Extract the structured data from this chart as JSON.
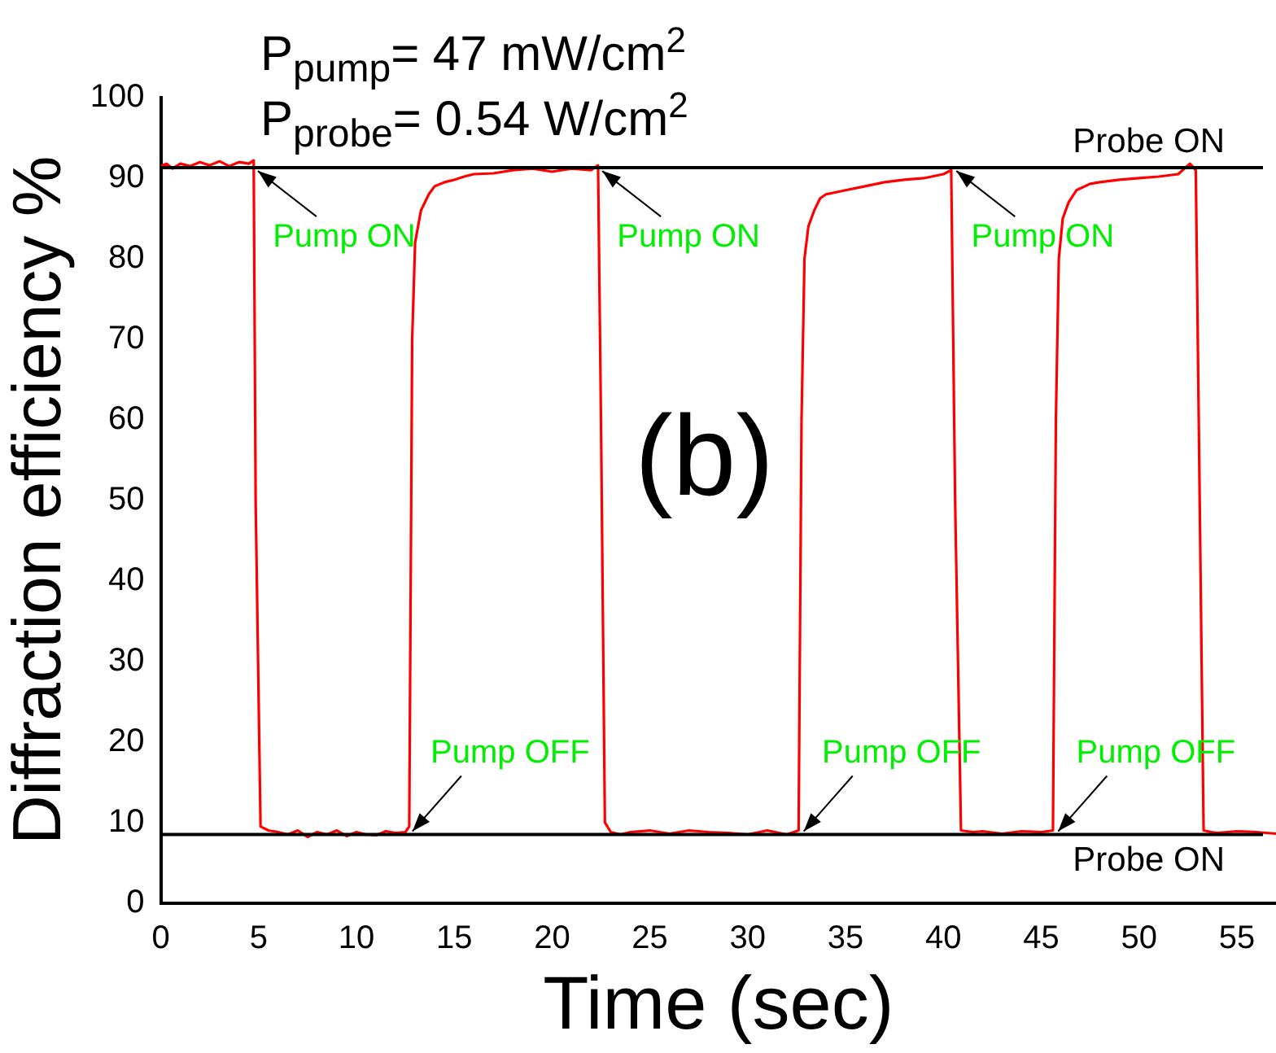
{
  "chart_data": {
    "type": "line",
    "xlabel": "Time (sec)",
    "ylabel": "Diffraction efficiency %",
    "x": [
      0,
      0.3,
      0.6,
      1,
      1.5,
      2,
      2.5,
      3,
      3.5,
      4,
      4.5,
      4.75,
      4.85,
      5.1,
      5.5,
      6,
      6.5,
      7,
      7.5,
      8,
      8.5,
      9,
      9.5,
      10,
      10.5,
      11,
      11.5,
      12,
      12.5,
      12.7,
      12.85,
      13,
      13.3,
      13.7,
      14,
      14.5,
      15,
      15.5,
      16,
      17,
      18,
      19,
      20,
      21,
      22,
      22.35,
      22.5,
      22.7,
      23,
      23.5,
      24,
      25,
      26,
      27,
      28,
      29,
      30,
      31,
      32,
      32.6,
      32.75,
      32.9,
      33.1,
      33.4,
      33.7,
      34,
      35,
      36,
      37,
      38,
      39,
      40,
      40.4,
      40.6,
      40.9,
      41.5,
      42,
      43,
      44,
      45,
      45.6,
      45.75,
      45.9,
      46.1,
      46.4,
      46.8,
      47.5,
      48,
      49,
      50,
      51,
      52,
      52.6,
      52.9,
      53.1,
      53.3,
      53.7,
      54,
      55,
      56,
      57
    ],
    "series": [
      {
        "color": "#ff0000",
        "values": [
          91.5,
          91.8,
          91.2,
          91.8,
          91.5,
          92,
          91.6,
          92.1,
          91.5,
          92,
          91.8,
          92.2,
          50,
          9.5,
          9,
          8.8,
          8.5,
          9,
          8.2,
          8.8,
          8.5,
          9,
          8.3,
          8.8,
          8.5,
          8.4,
          8.9,
          8.7,
          8.8,
          9.5,
          70,
          82,
          86,
          88,
          89,
          89.5,
          89.8,
          90.2,
          90.5,
          90.6,
          91,
          91.2,
          90.8,
          91.2,
          91,
          91.6,
          60,
          10,
          8.8,
          8.5,
          8.8,
          9,
          8.6,
          9,
          8.8,
          8.7,
          8.5,
          9,
          8.5,
          9,
          60,
          80,
          84,
          86,
          87.5,
          88,
          88.5,
          89,
          89.5,
          89.8,
          90,
          90.5,
          91,
          50,
          9,
          8.8,
          8.9,
          8.6,
          8.9,
          8.8,
          9,
          60,
          80,
          85,
          87,
          88.5,
          89.3,
          89.5,
          89.8,
          90,
          90.2,
          90.5,
          91.8,
          91,
          50,
          9,
          8.8,
          8.7,
          8.9,
          8.8,
          8.6
        ]
      }
    ],
    "xlim": [
      0,
      57
    ],
    "xticks": [
      0,
      5,
      10,
      15,
      20,
      25,
      30,
      35,
      40,
      45,
      50,
      55
    ],
    "ylim": [
      0,
      100
    ],
    "yticks": [
      0,
      10,
      20,
      30,
      40,
      50,
      60,
      70,
      80,
      90,
      100
    ],
    "ref_lines": [
      {
        "axis": "y",
        "value": 91.3,
        "label": "Probe ON",
        "color": "#000000"
      },
      {
        "axis": "y",
        "value": 8.5,
        "label": "Probe ON",
        "color": "#000000"
      }
    ],
    "annotations": [
      "P$_{pump}$= 47 mW/cm$^{2}$",
      "P$_{probe}$= 0.54 W/cm$^{2}$",
      "(b)",
      {
        "text": "Pump ON",
        "x": 4.8,
        "y": 91.3
      },
      {
        "text": "Pump ON",
        "x": 22.4,
        "y": 91.3
      },
      {
        "text": "Pump ON",
        "x": 40.5,
        "y": 91.3
      },
      {
        "text": "Pump OFF",
        "x": 12.7,
        "y": 8.5
      },
      {
        "text": "Pump OFF",
        "x": 32.7,
        "y": 8.5
      },
      {
        "text": "Pump OFF",
        "x": 45.7,
        "y": 8.5
      }
    ],
    "grid": false,
    "legend": false,
    "marker": "none",
    "line_style": "solid"
  }
}
